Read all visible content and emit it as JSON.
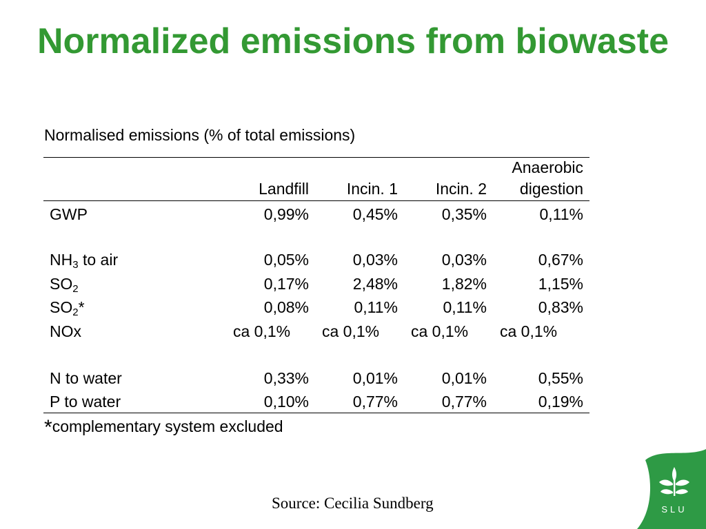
{
  "slide": {
    "title": "Normalized emissions from biowaste",
    "subtitle": "Normalised emissions (%  of total emissions)",
    "footnote_star": "*",
    "footnote_text": "complementary system excluded",
    "source": "Source: Cecilia Sundberg",
    "logo": {
      "icon": "slu-logo",
      "text": "SLU",
      "color": "#2e9a45"
    }
  },
  "table": {
    "headers": {
      "landfill": "Landfill",
      "incin1": "Incin. 1",
      "incin2": "Incin. 2",
      "anaerobic_line1": "Anaerobic",
      "anaerobic_line2": "digestion"
    },
    "rows": [
      {
        "label": "GWP",
        "values": [
          "0,99%",
          "0,45%",
          "0,35%",
          "0,11%"
        ]
      },
      {
        "label_main": "NH",
        "label_sub": "3",
        "label_rest": " to air",
        "values": [
          "0,05%",
          "0,03%",
          "0,03%",
          "0,67%"
        ]
      },
      {
        "label_main": "SO",
        "label_sub": "2",
        "label_rest": "",
        "values": [
          "0,17%",
          "2,48%",
          "1,82%",
          "1,15%"
        ]
      },
      {
        "label_main": "SO",
        "label_sub": "2",
        "label_rest": "*",
        "values": [
          "0,08%",
          "0,11%",
          "0,11%",
          "0,83%"
        ]
      },
      {
        "label": "NOx",
        "values": [
          "ca 0,1%",
          "ca 0,1%",
          "ca 0,1%",
          "ca 0,1%"
        ]
      },
      {
        "label": "N to water",
        "values": [
          "0,33%",
          "0,01%",
          "0,01%",
          "0,55%"
        ]
      },
      {
        "label": "P to water",
        "values": [
          "0,10%",
          "0,77%",
          "0,77%",
          "0,19%"
        ]
      }
    ]
  }
}
